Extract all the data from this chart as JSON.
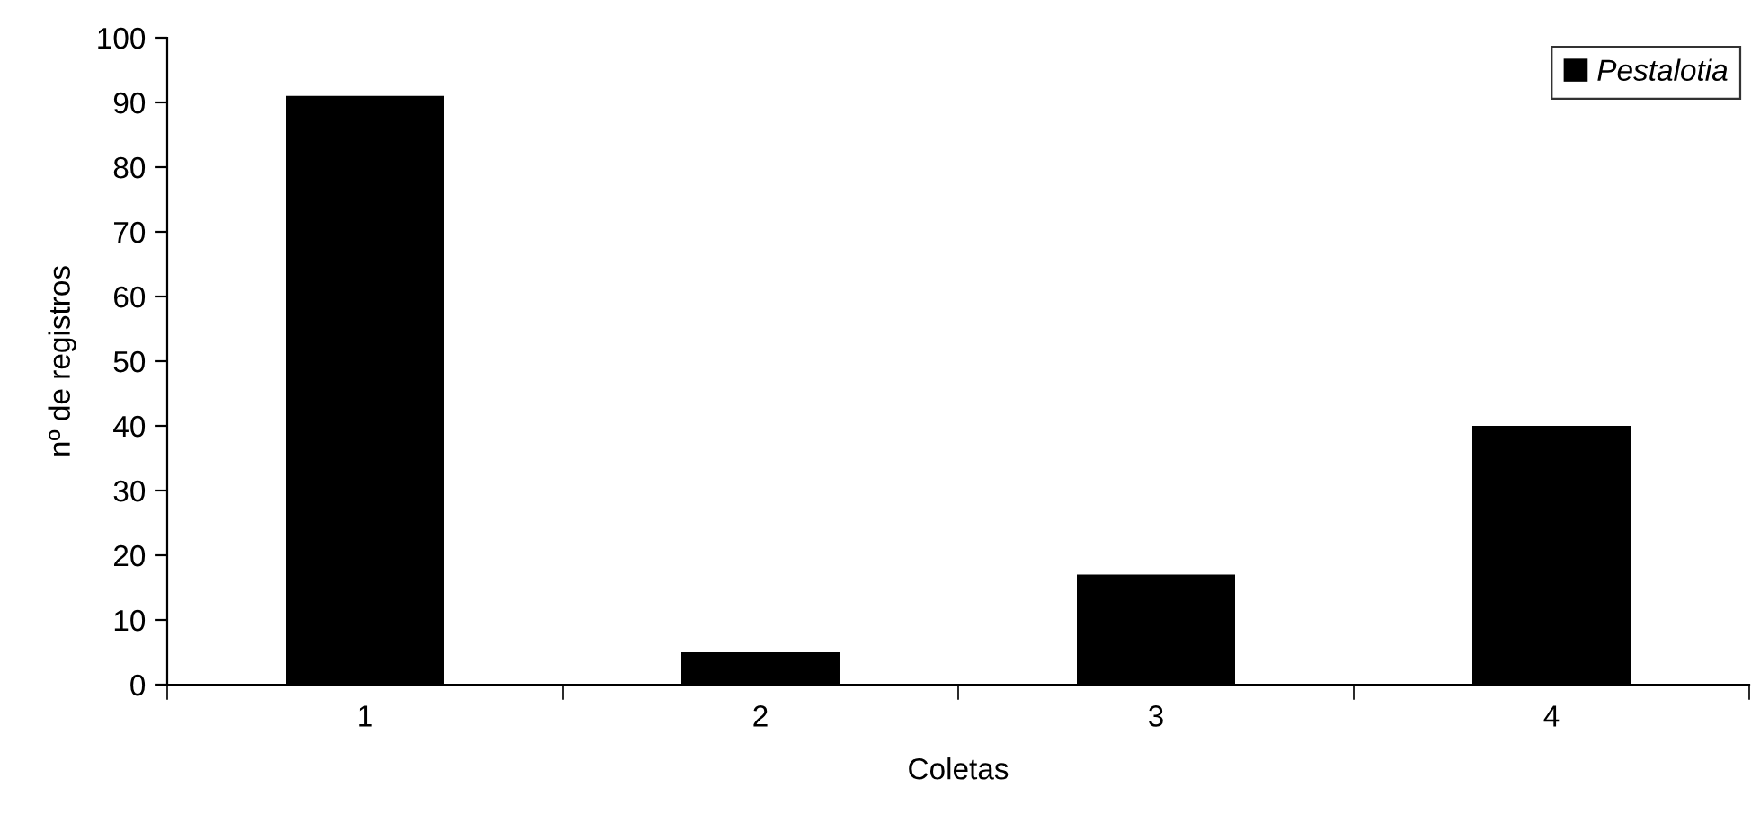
{
  "chart_data": {
    "type": "bar",
    "xlabel": "Coletas",
    "ylabel": "nº de registros",
    "categories": [
      "1",
      "2",
      "3",
      "4"
    ],
    "series": [
      {
        "name": "Pestalotia",
        "color": "#000000",
        "values": [
          91,
          5,
          17,
          40
        ]
      }
    ],
    "ylim": [
      0,
      100
    ],
    "yticks": [
      0,
      10,
      20,
      30,
      40,
      50,
      60,
      70,
      80,
      90,
      100
    ],
    "grid": false,
    "legend": "top right"
  }
}
